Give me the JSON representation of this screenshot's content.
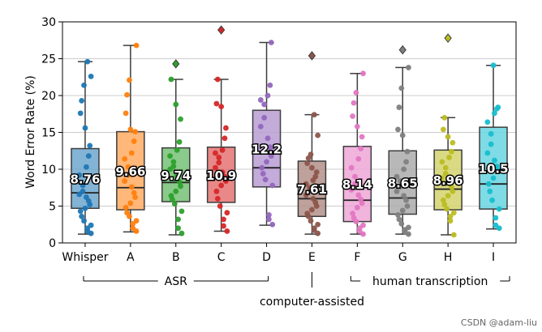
{
  "chart_data": {
    "type": "box",
    "ylabel": "Word Error Rate (%)",
    "ylim": [
      0,
      30
    ],
    "yticks": [
      0,
      5,
      10,
      15,
      20,
      25,
      30
    ],
    "grid": "horizontal",
    "boxes": [
      {
        "label": "Whisper",
        "color": "#1f77b4",
        "mean_label": "8.76",
        "whisker_low": 1.2,
        "q1": 4.7,
        "median": 6.8,
        "q3": 12.8,
        "whisker_high": 24.6,
        "outliers": [],
        "points": [
          1.3,
          1.6,
          2.0,
          2.4,
          3.0,
          3.6,
          4.3,
          4.7,
          5.2,
          5.7,
          6.2,
          6.6,
          7.0,
          7.8,
          9.2,
          10.3,
          11.8,
          13.2,
          15.6,
          17.6,
          19.3,
          21.4,
          22.6,
          24.6
        ]
      },
      {
        "label": "A",
        "color": "#ff7f0e",
        "mean_label": "9.66",
        "whisker_low": 1.5,
        "q1": 4.5,
        "median": 7.5,
        "q3": 15.1,
        "whisker_high": 26.8,
        "outliers": [],
        "points": [
          1.6,
          2.0,
          2.6,
          3.0,
          3.6,
          4.1,
          4.8,
          5.4,
          6.2,
          6.8,
          7.6,
          8.4,
          9.2,
          10.3,
          11.4,
          12.2,
          13.8,
          15.1,
          15.4,
          17.6,
          20.1,
          22.1,
          26.8
        ]
      },
      {
        "label": "B",
        "color": "#2ca02c",
        "mean_label": "9.74",
        "whisker_low": 1.1,
        "q1": 5.6,
        "median": 8.2,
        "q3": 12.9,
        "whisker_high": 22.2,
        "outliers": [
          24.3
        ],
        "points": [
          1.3,
          2.0,
          3.2,
          4.3,
          5.3,
          5.9,
          6.4,
          7.0,
          7.7,
          8.3,
          9.1,
          10.0,
          10.4,
          11.0,
          11.8,
          12.6,
          13.7,
          16.8,
          18.8,
          22.2
        ]
      },
      {
        "label": "C",
        "color": "#d62728",
        "mean_label": "10.9",
        "whisker_low": 1.6,
        "q1": 5.5,
        "median": 8.7,
        "q3": 13.0,
        "whisker_high": 22.2,
        "outliers": [
          28.9
        ],
        "points": [
          1.6,
          2.3,
          3.2,
          4.1,
          5.0,
          6.0,
          7.0,
          7.8,
          8.4,
          9.0,
          9.6,
          10.2,
          10.9,
          11.6,
          12.2,
          12.6,
          14.2,
          15.6,
          18.5,
          18.9,
          22.2
        ]
      },
      {
        "label": "D",
        "color": "#9467bd",
        "mean_label": "12.2",
        "whisker_low": 2.4,
        "q1": 7.6,
        "median": 10.2,
        "q3": 18.0,
        "whisker_high": 27.2,
        "outliers": [],
        "points": [
          2.5,
          3.2,
          3.8,
          7.8,
          8.6,
          9.4,
          10.2,
          11.0,
          11.8,
          13.0,
          14.2,
          15.8,
          17.0,
          18.8,
          19.4,
          20.0,
          21.4,
          27.2
        ]
      },
      {
        "label": "E",
        "color": "#8c564b",
        "mean_label": "7.61",
        "whisker_low": 1.2,
        "q1": 3.6,
        "median": 6.0,
        "q3": 11.1,
        "whisker_high": 17.4,
        "outliers": [
          25.4
        ],
        "points": [
          1.3,
          1.7,
          2.0,
          2.5,
          3.0,
          3.6,
          4.0,
          4.5,
          5.0,
          5.5,
          6.0,
          6.5,
          7.0,
          7.5,
          8.0,
          8.5,
          9.0,
          9.6,
          10.2,
          10.8,
          11.5,
          12.0,
          14.6,
          17.4
        ]
      },
      {
        "label": "F",
        "color": "#e377c2",
        "mean_label": "8.14",
        "whisker_low": 1.2,
        "q1": 2.9,
        "median": 5.8,
        "q3": 13.1,
        "whisker_high": 23.0,
        "outliers": [],
        "points": [
          1.2,
          1.6,
          2.0,
          2.4,
          2.9,
          3.4,
          4.0,
          4.8,
          5.4,
          5.9,
          6.5,
          7.2,
          8.0,
          9.0,
          10.2,
          11.4,
          12.8,
          14.4,
          15.8,
          17.2,
          19.0,
          20.4,
          23.0
        ]
      },
      {
        "label": "G",
        "color": "#7f7f7f",
        "mean_label": "8.65",
        "whisker_low": 1.2,
        "q1": 3.9,
        "median": 6.1,
        "q3": 12.5,
        "whisker_high": 23.8,
        "outliers": [
          26.2
        ],
        "points": [
          1.2,
          1.5,
          1.8,
          2.1,
          2.6,
          3.2,
          3.8,
          4.4,
          5.0,
          5.8,
          6.4,
          7.0,
          7.6,
          8.4,
          9.0,
          10.0,
          11.0,
          12.4,
          14.6,
          15.4,
          18.4,
          21.0,
          23.8
        ]
      },
      {
        "label": "H",
        "color": "#bcbd22",
        "mean_label": "8.96",
        "whisker_low": 1.1,
        "q1": 4.5,
        "median": 7.3,
        "q3": 12.6,
        "whisker_high": 17.0,
        "outliers": [
          27.8
        ],
        "points": [
          1.1,
          3.0,
          3.6,
          4.1,
          4.6,
          5.2,
          5.8,
          6.4,
          7.0,
          7.6,
          8.2,
          8.8,
          9.4,
          10.2,
          11.0,
          11.6,
          12.4,
          13.6,
          14.4,
          15.4,
          17.0
        ]
      },
      {
        "label": "I",
        "color": "#17becf",
        "mean_label": "10.5",
        "whisker_low": 1.9,
        "q1": 4.6,
        "median": 8.0,
        "q3": 15.7,
        "whisker_high": 24.1,
        "outliers": [],
        "points": [
          2.0,
          2.4,
          3.4,
          4.6,
          5.8,
          7.0,
          8.0,
          8.8,
          9.8,
          10.4,
          11.2,
          12.2,
          13.4,
          14.8,
          16.4,
          17.6,
          18.2,
          18.4,
          24.1
        ]
      }
    ],
    "groups": [
      {
        "label": "ASR",
        "span": [
          "A",
          "D"
        ],
        "includes_whisper": true
      },
      {
        "label": "computer-assisted",
        "span": [
          "E",
          "E"
        ]
      },
      {
        "label": "human transcription",
        "span": [
          "F",
          "I"
        ]
      }
    ]
  },
  "watermark": "CSDN @adam-liu"
}
